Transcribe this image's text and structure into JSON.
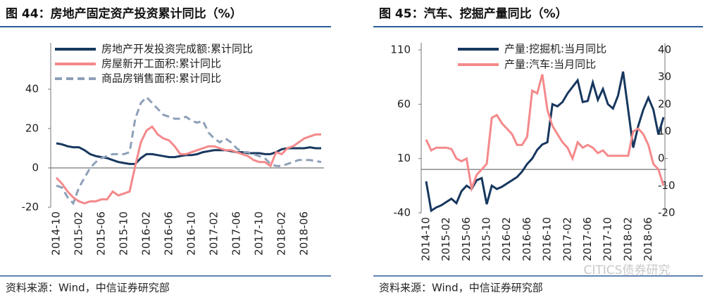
{
  "chart_data": [
    {
      "type": "line",
      "title": "图 44：房地产固定资产投资累计同比（%）",
      "source": "资料来源：Wind，中信证券研究部",
      "categories": [
        "2014-10",
        null,
        null,
        null,
        "2015-02",
        null,
        null,
        null,
        "2015-06",
        null,
        null,
        null,
        "2015-10",
        null,
        null,
        null,
        "2016-02",
        null,
        null,
        null,
        "2016-06",
        null,
        null,
        null,
        "2016-10",
        null,
        null,
        null,
        "2017-02",
        null,
        null,
        null,
        "2017-06",
        null,
        null,
        null,
        "2017-10",
        null,
        null,
        null,
        "2018-02",
        null,
        null,
        null,
        "2018-06",
        null,
        null,
        null
      ],
      "ylim": [
        -20,
        60
      ],
      "yticks": [
        -20,
        0,
        20,
        40
      ],
      "legend": "upper left",
      "series": [
        {
          "name": "房地产开发投资完成额:累计同比",
          "color": "#17375e",
          "style": "solid",
          "values": [
            12.5,
            12,
            11,
            10.5,
            10.5,
            9,
            7,
            6,
            5.5,
            5,
            4,
            3,
            2.5,
            2,
            2,
            5,
            7,
            7,
            6.5,
            6,
            5.5,
            5.5,
            6,
            6.5,
            6.5,
            7,
            8,
            8.5,
            9,
            9,
            9,
            8.5,
            8,
            8,
            7.5,
            7.5,
            7.5,
            7,
            7,
            8,
            9.5,
            10,
            10,
            10,
            10,
            10.5,
            10,
            10
          ]
        },
        {
          "name": "房屋新开工面积:累计同比",
          "color": "#f4898b",
          "style": "solid",
          "values": [
            -5,
            -8,
            -12,
            -15,
            -17,
            -18,
            -17,
            -17,
            -16,
            -16,
            -12,
            -14,
            -13,
            -12,
            1,
            13,
            19,
            21,
            17,
            15,
            14,
            11,
            7,
            7,
            8,
            9,
            10,
            11,
            11,
            10,
            9,
            9,
            8,
            7,
            6,
            4,
            3,
            3,
            1,
            8,
            7,
            10,
            11,
            13,
            15,
            16,
            17,
            17
          ]
        },
        {
          "name": "商品房销售面积:累计同比",
          "color": "#8ea0b8",
          "style": "dashed",
          "values": [
            -9,
            -10,
            -15,
            -18,
            -10,
            -5,
            0,
            3,
            5,
            6,
            7,
            7,
            7,
            8,
            25,
            33,
            36,
            33,
            30,
            27,
            26,
            25,
            25,
            26,
            24,
            23,
            24,
            18,
            15,
            13,
            15,
            13,
            10,
            8,
            8,
            7,
            6,
            5,
            2,
            1,
            1,
            2,
            3,
            4,
            4,
            4,
            3.5,
            3
          ]
        }
      ]
    },
    {
      "type": "line",
      "title": "图 45：汽车、挖掘产量同比（%）",
      "source": "资料来源：Wind，中信证券研究部",
      "categories": [
        "2014-10",
        null,
        null,
        null,
        "2015-02",
        null,
        null,
        null,
        "2015-06",
        null,
        null,
        null,
        "2015-10",
        null,
        null,
        null,
        "2016-02",
        null,
        null,
        null,
        "2016-06",
        null,
        null,
        null,
        "2016-10",
        null,
        null,
        null,
        "2017-02",
        null,
        null,
        null,
        "2017-06",
        null,
        null,
        null,
        "2017-10",
        null,
        null,
        null,
        "2018-02",
        null,
        null,
        null,
        "2018-06",
        null,
        null,
        null
      ],
      "ylim": [
        -40,
        110
      ],
      "yticks": [
        -40,
        10,
        60,
        110
      ],
      "y2lim": [
        -20,
        40
      ],
      "y2ticks": [
        -20,
        -10,
        0,
        10,
        20,
        30,
        40
      ],
      "legend": "upper left",
      "series": [
        {
          "name": "产量:挖掘机:当月同比",
          "color": "#17375e",
          "style": "solid",
          "axis": "y",
          "values": [
            -11,
            -38,
            -35,
            -33,
            -30,
            -27,
            -31,
            -20,
            -15,
            -18,
            -10,
            -8,
            -32,
            -15,
            -18,
            -16,
            -13,
            -10,
            -7,
            -2,
            5,
            10,
            18,
            23,
            25,
            60,
            58,
            62,
            70,
            76,
            82,
            62,
            63,
            80,
            64,
            74,
            60,
            56,
            68,
            90,
            55,
            20,
            40,
            55,
            66,
            55,
            32,
            48
          ]
        },
        {
          "name": "产量:汽车:当月同比",
          "color": "#f4898b",
          "style": "solid",
          "axis": "y2",
          "values": [
            7,
            3,
            4,
            4,
            4,
            3.5,
            0,
            -1,
            0,
            -11,
            -6,
            -4,
            -2,
            15,
            16,
            13,
            11,
            9,
            5,
            5,
            8,
            25,
            24,
            31,
            18,
            12,
            9,
            6,
            4,
            0,
            6,
            4,
            5,
            4,
            2,
            3,
            1,
            1,
            1,
            1,
            1,
            10,
            11,
            9,
            5,
            -2,
            -4,
            -10
          ]
        }
      ]
    }
  ],
  "watermark": "CITICS债券研究"
}
